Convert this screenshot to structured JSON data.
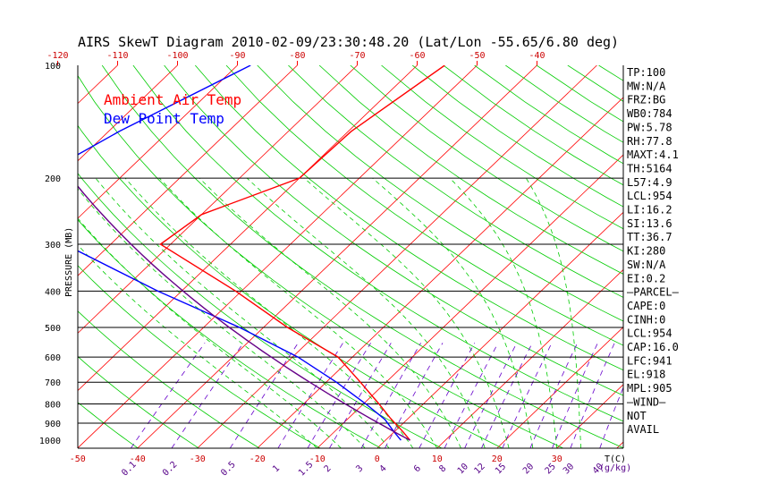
{
  "title": "AIRS SkewT Diagram 2010-02-09/23:30:48.20 (Lat/Lon -55.65/6.80 deg)",
  "legend": {
    "ambient": "Ambient Air Temp",
    "dewpoint": "Dew Point Temp",
    "ambient_color": "#ff0000",
    "dewpoint_color": "#0000ff"
  },
  "colors": {
    "isotherm": "#ff0000",
    "dry_adiabat": "#00cc00",
    "moist_adiabat": "#00cc00",
    "mixing_ratio": "#6600cc",
    "temperature": "#ff0000",
    "dewpoint": "#0000ff",
    "parcel": "#660088",
    "isobar": "#000000"
  },
  "indices": [
    "TP:100",
    "MW:N/A",
    "FRZ:BG",
    "WB0:784",
    "PW:5.78",
    "RH:77.8",
    "MAXT:4.1",
    "TH:5164",
    "L57:4.9",
    "LCL:954",
    "LI:16.2",
    "SI:13.6",
    "TT:36.7",
    "KI:280",
    "SW:N/A",
    "EI:0.2",
    "—PARCEL—",
    "CAPE:0",
    "CINH:0",
    "LCL:954",
    "CAP:16.0",
    "LFC:941",
    "EL:918",
    "MPL:905",
    "—WIND—",
    "NOT",
    "AVAIL"
  ],
  "chart_data": {
    "type": "skew-t",
    "title": "AIRS SkewT Diagram 2010-02-09/23:30:48.20 (Lat/Lon -55.65/6.80 deg)",
    "ylabel": "PRESSURE (MB)",
    "xlabel_bottom": "T(C)",
    "mixing_ratio_label": "(g/kg)",
    "ylim": [
      1050,
      100
    ],
    "pressure_ticks": [
      100,
      200,
      300,
      400,
      500,
      600,
      700,
      800,
      900,
      1000
    ],
    "isobars": [
      200,
      300,
      400,
      500,
      600,
      700,
      800,
      900
    ],
    "top_temp_ticks": [
      "-120",
      "-110",
      "-100",
      "-90",
      "-80",
      "-70",
      "-60",
      "-50",
      "-40"
    ],
    "bottom_temp_ticks": [
      "-50",
      "-40",
      "-30",
      "-20",
      "-10",
      "0",
      "10",
      "20",
      "30"
    ],
    "mixing_ratio_ticks": [
      "0.1",
      "0.2",
      "0.5",
      "1",
      "1.5",
      "2",
      "3",
      "4",
      "6",
      "8",
      "10",
      "12",
      "15",
      "20",
      "25",
      "30",
      "40"
    ],
    "series": [
      {
        "name": "Ambient Air Temp",
        "points": [
          {
            "p": 100,
            "t": -55.4
          },
          {
            "p": 150,
            "t": -59.5
          },
          {
            "p": 200,
            "t": -60.0
          },
          {
            "p": 250,
            "t": -70.0
          },
          {
            "p": 300,
            "t": -71.7
          },
          {
            "p": 400,
            "t": -51.0
          },
          {
            "p": 500,
            "t": -36.0
          },
          {
            "p": 600,
            "t": -22.4
          },
          {
            "p": 700,
            "t": -14.3
          },
          {
            "p": 800,
            "t": -7.4
          },
          {
            "p": 870,
            "t": -3.2
          },
          {
            "p": 950,
            "t": 1.5
          },
          {
            "p": 1000,
            "t": 4.1
          }
        ]
      },
      {
        "name": "Dew Point Temp",
        "points": [
          {
            "p": 100,
            "t": -87.8
          },
          {
            "p": 150,
            "t": -98.2
          },
          {
            "p": 200,
            "t": -104.0
          },
          {
            "p": 230,
            "t": -101.0
          },
          {
            "p": 250,
            "t": -97.3
          },
          {
            "p": 300,
            "t": -87.7
          },
          {
            "p": 400,
            "t": -64.0
          },
          {
            "p": 500,
            "t": -44.0
          },
          {
            "p": 600,
            "t": -29.1
          },
          {
            "p": 700,
            "t": -18.3
          },
          {
            "p": 800,
            "t": -9.6
          },
          {
            "p": 880,
            "t": -3.7
          },
          {
            "p": 950,
            "t": 0.0
          },
          {
            "p": 1000,
            "t": 2.6
          }
        ]
      }
    ]
  }
}
